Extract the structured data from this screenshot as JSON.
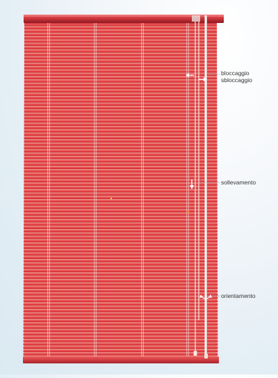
{
  "colors": {
    "blind": "#e23a3f",
    "blind_dark": "#b8232a",
    "slat_gap": "#f6b8a8",
    "cord": "#f4f0ea",
    "headrail": "#c9333a",
    "background": "#e3eef5"
  },
  "blind": {
    "slat_count": 100,
    "ladder_cords": 4
  },
  "controls": {
    "lock_label": "bloccaggio",
    "unlock_label": "sbloccaggio",
    "raise_label": "sollevamento",
    "tilt_label": "orientamento"
  },
  "icons": {
    "lock": "arrow-left-icon",
    "unlock": "arrow-right-icon",
    "raise": "arrow-down-icon",
    "tilt": "rotate-icon"
  }
}
